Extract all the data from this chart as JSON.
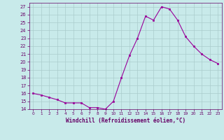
{
  "x": [
    0,
    1,
    2,
    3,
    4,
    5,
    6,
    7,
    8,
    9,
    10,
    11,
    12,
    13,
    14,
    15,
    16,
    17,
    18,
    19,
    20,
    21,
    22,
    23
  ],
  "y": [
    16,
    15.8,
    15.5,
    15.2,
    14.8,
    14.8,
    14.8,
    14.2,
    14.2,
    14.0,
    15.0,
    18.0,
    20.8,
    23.0,
    25.8,
    25.3,
    27.0,
    26.7,
    25.3,
    23.2,
    22.0,
    21.0,
    20.3,
    19.8
  ],
  "line_color": "#990099",
  "marker": "s",
  "marker_size": 1.5,
  "bg_color": "#c8eaea",
  "grid_color": "#aacccc",
  "xlabel": "Windchill (Refroidissement éolien,°C)",
  "xlabel_color": "#660066",
  "tick_color": "#660066",
  "ylim": [
    14,
    27.5
  ],
  "xlim": [
    -0.5,
    23.5
  ],
  "yticks": [
    14,
    15,
    16,
    17,
    18,
    19,
    20,
    21,
    22,
    23,
    24,
    25,
    26,
    27
  ],
  "xticks": [
    0,
    1,
    2,
    3,
    4,
    5,
    6,
    7,
    8,
    9,
    10,
    11,
    12,
    13,
    14,
    15,
    16,
    17,
    18,
    19,
    20,
    21,
    22,
    23
  ]
}
